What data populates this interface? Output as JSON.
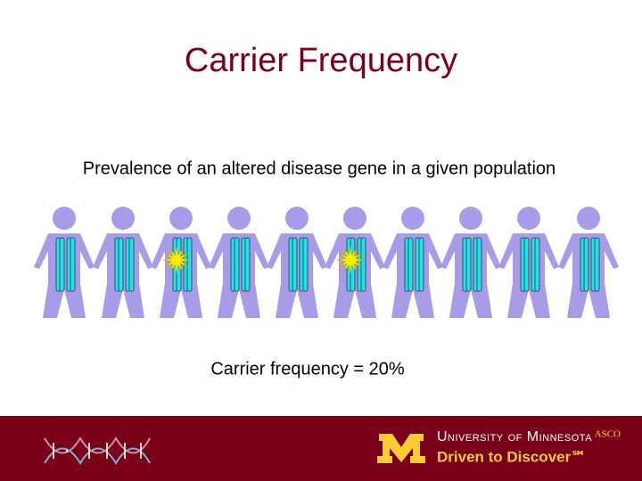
{
  "slide": {
    "title": "Carrier Frequency",
    "subtitle": "Prevalence of an altered disease gene in a given population",
    "caption": "Carrier frequency = 20%"
  },
  "footer": {
    "university": "University of Minnesota",
    "tagline": "Driven to Discover℠",
    "source": "ASCO"
  }
}
